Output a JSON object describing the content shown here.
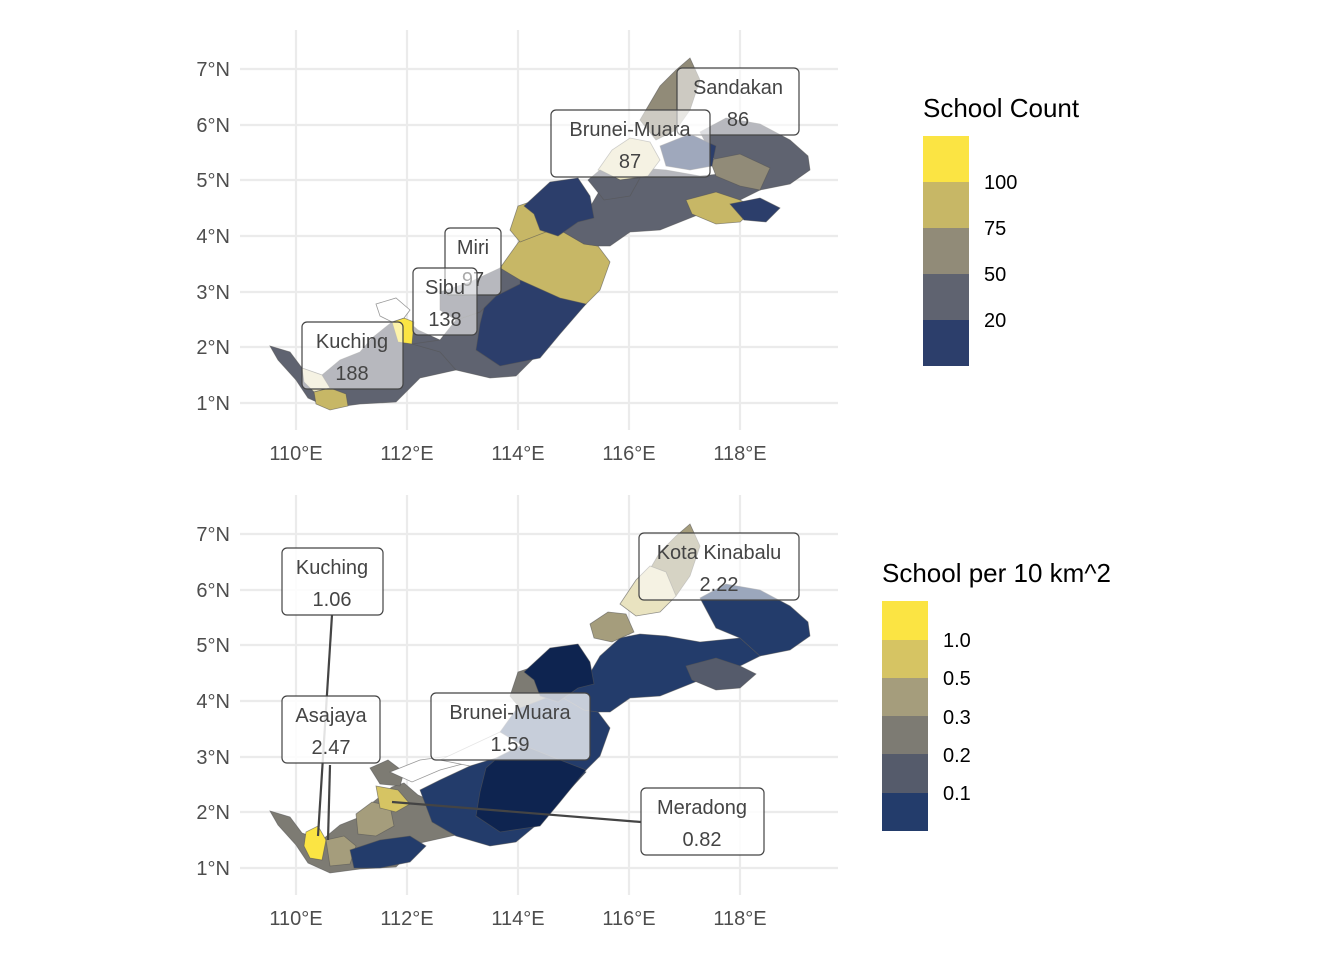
{
  "palette": {
    "navy": "#2c3e6b",
    "navy_dark": "#0e2450",
    "slate": "#5f6370",
    "grey": "#7d7b73",
    "khaki": "#a59d7c",
    "olive": "#c7b766",
    "yellow": "#fbe443",
    "pale": "#e9e3c0",
    "white": "#ffffff"
  },
  "axes": {
    "x_ticks": [
      "110°E",
      "112°E",
      "114°E",
      "116°E",
      "118°E"
    ],
    "y_ticks": [
      "1°N",
      "2°N",
      "3°N",
      "4°N",
      "5°N",
      "6°N",
      "7°N"
    ]
  },
  "panels": [
    {
      "id": "school-count",
      "legend": {
        "title": "School Count",
        "labels": [
          "100",
          "75",
          "50",
          "20"
        ],
        "colors": [
          "#fbe443",
          "#c7b766",
          "#918b78",
          "#5f6370",
          "#2c3e6b"
        ]
      },
      "labels": [
        {
          "name": "Sandakan",
          "value": "86"
        },
        {
          "name": "Brunei-Muara",
          "value": "87"
        },
        {
          "name": "Miri",
          "value": "97"
        },
        {
          "name": "Sibu",
          "value": "138"
        },
        {
          "name": "Kuching",
          "value": "188"
        }
      ]
    },
    {
      "id": "school-density",
      "legend": {
        "title": "School per 10 km^2",
        "labels": [
          "1.0",
          "0.5",
          "0.3",
          "0.2",
          "0.1"
        ],
        "colors": [
          "#fbe443",
          "#d6c463",
          "#a59d7c",
          "#7d7b73",
          "#555b6b",
          "#233c6b"
        ]
      },
      "labels": [
        {
          "name": "Kota Kinabalu",
          "value": "2.22"
        },
        {
          "name": "Kuching",
          "value": "1.06"
        },
        {
          "name": "Asajaya",
          "value": "2.47"
        },
        {
          "name": "Brunei-Muara",
          "value": "1.59"
        },
        {
          "name": "Meradong",
          "value": "0.82"
        }
      ]
    }
  ]
}
